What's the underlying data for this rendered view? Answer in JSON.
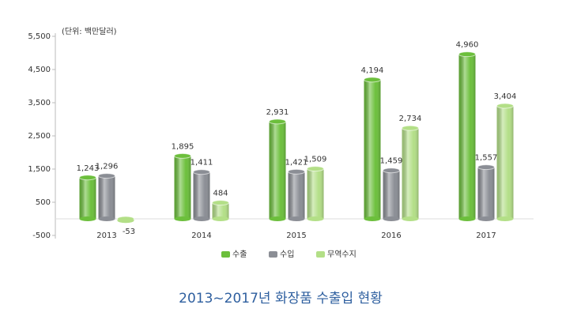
{
  "chart_data": {
    "type": "bar",
    "title": "2013~2017년 화장품 수출입 현황",
    "annotation": "(단위: 백만달러)",
    "categories": [
      "2013",
      "2014",
      "2015",
      "2016",
      "2017"
    ],
    "series": [
      {
        "name": "수출",
        "color": "#6cbf3c",
        "values": [
          1243,
          1895,
          2931,
          4194,
          4960
        ],
        "value_labels": [
          "1,243",
          "1,895",
          "2,931",
          "4,194",
          "4,960"
        ]
      },
      {
        "name": "수입",
        "color": "#8b8e95",
        "values": [
          1296,
          1411,
          1421,
          1459,
          1557
        ],
        "value_labels": [
          "1,296",
          "1,411",
          "1,421",
          "1,459",
          "1,557"
        ]
      },
      {
        "name": "무역수지",
        "color": "#b3df87",
        "values": [
          -53,
          484,
          1509,
          2734,
          3404
        ],
        "value_labels": [
          "-53",
          "484",
          "1,509",
          "2,734",
          "3,404"
        ]
      }
    ],
    "ylim": [
      -500,
      5500
    ],
    "yticks": [
      {
        "value": 5500,
        "label": "5,500"
      },
      {
        "value": 4500,
        "label": "4,500"
      },
      {
        "value": 3500,
        "label": "3,500"
      },
      {
        "value": 2500,
        "label": "2,500"
      },
      {
        "value": 1500,
        "label": "1,500"
      },
      500,
      -500
    ],
    "grid": false,
    "legend": "bottom"
  }
}
